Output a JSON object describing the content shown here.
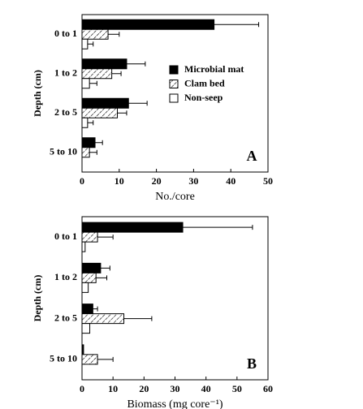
{
  "chart_data": [
    {
      "type": "hbar",
      "panel_label": "A",
      "xlabel": "No./core",
      "ylabel": "Depth (cm)",
      "categories": [
        "0 to 1",
        "1 to 2",
        "2 to 5",
        "5 to 10"
      ],
      "xlim": [
        0,
        50
      ],
      "xticks": [
        0,
        10,
        20,
        30,
        40,
        50
      ],
      "legend": true,
      "series": [
        {
          "name": "Microbial mat",
          "color": "#000000",
          "hatch": false,
          "values": [
            35.5,
            12,
            12.5,
            3.5
          ],
          "errors": [
            12,
            5,
            5,
            2
          ]
        },
        {
          "name": "Clam bed",
          "color": "#ffffff",
          "hatch": true,
          "values": [
            7,
            8,
            9.5,
            2
          ],
          "errors": [
            3,
            2.5,
            2.5,
            2
          ]
        },
        {
          "name": "Non-seep",
          "color": "#ffffff",
          "hatch": false,
          "values": [
            1.5,
            2,
            1.5,
            0
          ],
          "errors": [
            1.5,
            2,
            1.5,
            0
          ]
        }
      ]
    },
    {
      "type": "hbar",
      "panel_label": "B",
      "xlabel": "Biomass (mg core⁻¹)",
      "ylabel": "Depth (cm)",
      "categories": [
        "0 to 1",
        "1 to 2",
        "2 to 5",
        "5 to 10"
      ],
      "xlim": [
        0,
        60
      ],
      "xticks": [
        0,
        10,
        20,
        30,
        40,
        50,
        60
      ],
      "legend": false,
      "series": [
        {
          "name": "Microbial mat",
          "color": "#000000",
          "hatch": false,
          "values": [
            32.5,
            6,
            3.5,
            0.5
          ],
          "errors": [
            22.5,
            3,
            1.5,
            0
          ]
        },
        {
          "name": "Clam bed",
          "color": "#ffffff",
          "hatch": true,
          "values": [
            5,
            4.5,
            13.5,
            5
          ],
          "errors": [
            5,
            3.5,
            9,
            5
          ]
        },
        {
          "name": "Non-seep",
          "color": "#ffffff",
          "hatch": false,
          "values": [
            1,
            2,
            2.5,
            0
          ],
          "errors": [
            0,
            0,
            0,
            0
          ]
        }
      ]
    }
  ]
}
